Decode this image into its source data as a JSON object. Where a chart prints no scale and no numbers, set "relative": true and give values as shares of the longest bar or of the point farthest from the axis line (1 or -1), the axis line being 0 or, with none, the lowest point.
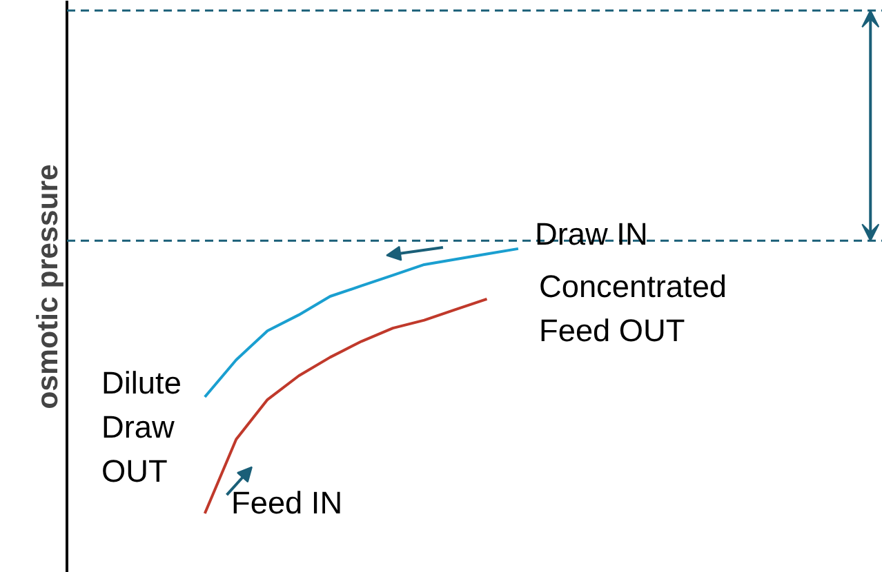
{
  "chart_data": {
    "type": "line",
    "relative": true,
    "ylabel": "osmotic pressure",
    "categories": [
      null,
      null,
      null,
      null,
      null,
      null,
      null,
      null,
      null,
      null,
      null
    ],
    "series": [
      {
        "color": "#1a9fd0",
        "values": [
          0.44,
          0.58,
          0.69,
          0.75,
          0.82,
          0.86,
          0.9,
          0.94,
          0.96,
          0.98,
          1.0
        ]
      },
      {
        "color": "#c0392b",
        "values": [
          0,
          0.28,
          0.43,
          0.52,
          0.59,
          0.65,
          0.7,
          0.73,
          0.77,
          0.81,
          null
        ]
      }
    ],
    "ref_lines": [
      {
        "axis": "y",
        "value": 1.9,
        "color": "#1a5f78",
        "line_style": "dashed"
      },
      {
        "axis": "y",
        "value": 1.03,
        "color": "#1a5f78",
        "line_style": "dashed"
      }
    ],
    "annotations": [
      "Draw IN",
      "Concentrated\nFeed OUT",
      "Dilute\nDraw\nOUT",
      "Feed IN"
    ],
    "grid": false,
    "line_style": "solid"
  }
}
